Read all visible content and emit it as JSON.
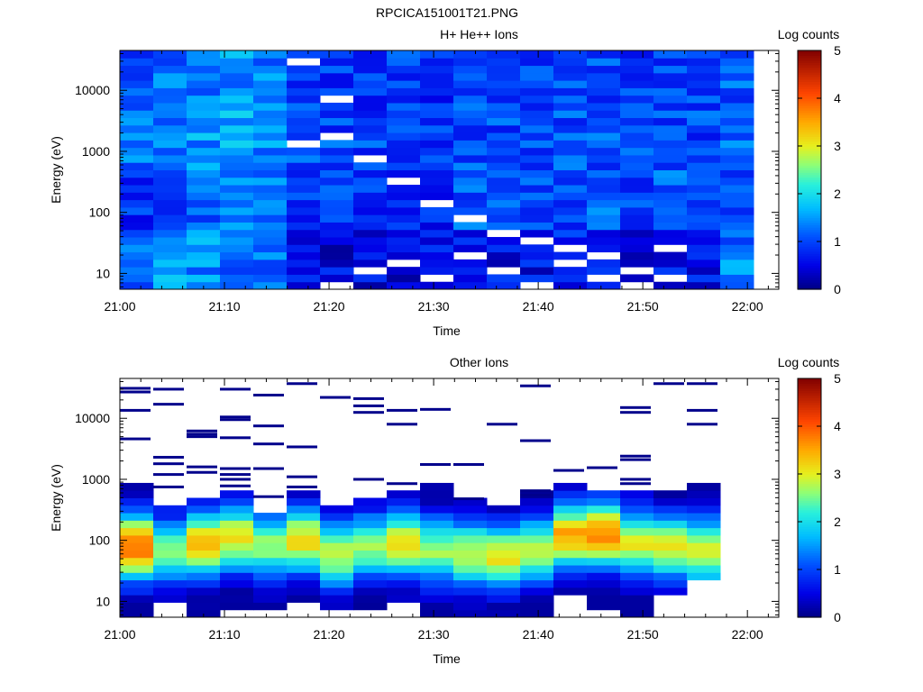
{
  "figure_title": "RPCICA151001T21.PNG",
  "chart_data": [
    {
      "type": "heatmap",
      "title": "H+ He++ Ions",
      "xlabel": "Time",
      "ylabel": "Energy (eV)",
      "y_scale": "log",
      "ylim": [
        5.5,
        45000
      ],
      "xlim": [
        "21:00",
        "22:03"
      ],
      "x_ticks": [
        "21:00",
        "21:10",
        "21:20",
        "21:30",
        "21:40",
        "21:50",
        "22:00"
      ],
      "y_ticks": [
        10,
        100,
        1000,
        10000
      ],
      "y_tick_labels": [
        "10",
        "100",
        "1000",
        "10000"
      ],
      "time_bin_minutes": 3.2,
      "energy_channels": 32,
      "energy_range_ev": [
        5.5,
        45000
      ],
      "colorbar": {
        "label": "Log counts",
        "range": [
          0,
          5
        ],
        "ticks": [
          "0",
          "1",
          "2",
          "3",
          "4",
          "5"
        ]
      },
      "column_profiles": [
        [
          1.3,
          1.5,
          1.4,
          1.1,
          1.2,
          0.6,
          0.5,
          0.5,
          0.5,
          0.6,
          0.7,
          0.6,
          0.6,
          0.8,
          0.7,
          0.6,
          0.6,
          0.6
        ],
        [
          0.9,
          1.0,
          1.2,
          1.3,
          1.2,
          0.8,
          0.9,
          0.9,
          0.9,
          0.8,
          1.1,
          1.0,
          1.1,
          1.0,
          1.2,
          1.0,
          1.1,
          1.0
        ],
        [
          1.2,
          1.4,
          1.5,
          1.6,
          1.4,
          1.0,
          1.0,
          1.0,
          1.0,
          0.9,
          1.0,
          1.0,
          1.0,
          1.1,
          1.1,
          1.0,
          1.0,
          1.0
        ],
        [
          1.1,
          1.2,
          1.4,
          1.5,
          1.3,
          0.9,
          0.9,
          0.9,
          0.9,
          0.8,
          1.0,
          0.9,
          0.9,
          1.0,
          1.0,
          0.9,
          0.9,
          0.9
        ]
      ],
      "empty_cells": [
        [
          5,
          30
        ],
        [
          6,
          25
        ],
        [
          5,
          19
        ],
        [
          6,
          20
        ],
        [
          7,
          17
        ],
        [
          8,
          14
        ],
        [
          9,
          11
        ],
        [
          10,
          9
        ],
        [
          11,
          7
        ],
        [
          12,
          6
        ],
        [
          13,
          5
        ],
        [
          14,
          4
        ],
        [
          15,
          2
        ],
        [
          16,
          1
        ],
        [
          8,
          3
        ],
        [
          9,
          1
        ],
        [
          11,
          2
        ],
        [
          12,
          0
        ],
        [
          13,
          3
        ],
        [
          14,
          1
        ],
        [
          15,
          0
        ],
        [
          16,
          5
        ],
        [
          10,
          4
        ],
        [
          7,
          2
        ],
        [
          6,
          0
        ]
      ]
    },
    {
      "type": "heatmap",
      "title": "Other Ions",
      "xlabel": "Time",
      "ylabel": "Energy (eV)",
      "y_scale": "log",
      "ylim": [
        5.5,
        45000
      ],
      "xlim": [
        "21:00",
        "22:03"
      ],
      "x_ticks": [
        "21:00",
        "21:10",
        "21:20",
        "21:30",
        "21:40",
        "21:50",
        "22:00"
      ],
      "y_ticks": [
        10,
        100,
        1000,
        10000
      ],
      "y_tick_labels": [
        "10",
        "100",
        "1000",
        "10000"
      ],
      "time_bin_minutes": 3.2,
      "energy_channels": 32,
      "energy_range_ev": [
        5.5,
        45000
      ],
      "colorbar": {
        "label": "Log counts",
        "range": [
          0,
          5
        ],
        "ticks": [
          "0",
          "1",
          "2",
          "3",
          "4",
          "5"
        ]
      },
      "peak_energy_ev": [
        80,
        70,
        90,
        110,
        80,
        100,
        60,
        80,
        90,
        70,
        60,
        55,
        70,
        120,
        130,
        90,
        80,
        70
      ],
      "peak_log_counts": [
        3.9,
        2.5,
        3.4,
        3.1,
        2.6,
        3.2,
        2.8,
        2.6,
        3.1,
        2.7,
        2.9,
        3.1,
        2.8,
        3.5,
        3.7,
        3.0,
        3.0,
        3.0
      ],
      "upper_cutoff_ev": [
        800,
        400,
        550,
        650,
        300,
        700,
        400,
        450,
        700,
        800,
        500,
        380,
        650,
        800,
        750,
        700,
        650,
        800
      ],
      "lower_cutoff_ev": [
        6,
        9,
        6,
        7,
        8,
        9,
        7,
        8,
        9,
        6,
        6,
        6,
        6,
        12,
        7,
        6,
        14,
        20
      ],
      "sparse_high_energy_lines": [
        [
          0,
          31000
        ],
        [
          0,
          27000
        ],
        [
          0,
          13500
        ],
        [
          0,
          4600
        ],
        [
          1,
          30000
        ],
        [
          1,
          17000
        ],
        [
          1,
          2300
        ],
        [
          1,
          1800
        ],
        [
          1,
          1200
        ],
        [
          1,
          750
        ],
        [
          2,
          6200
        ],
        [
          2,
          5500
        ],
        [
          2,
          5000
        ],
        [
          2,
          1600
        ],
        [
          2,
          1300
        ],
        [
          3,
          30000
        ],
        [
          3,
          10500
        ],
        [
          3,
          9500
        ],
        [
          3,
          4800
        ],
        [
          3,
          1500
        ],
        [
          3,
          1200
        ],
        [
          3,
          1000
        ],
        [
          3,
          780
        ],
        [
          4,
          24000
        ],
        [
          4,
          7500
        ],
        [
          4,
          3800
        ],
        [
          4,
          1500
        ],
        [
          4,
          520
        ],
        [
          5,
          37000
        ],
        [
          5,
          3400
        ],
        [
          5,
          1100
        ],
        [
          5,
          750
        ],
        [
          6,
          22000
        ],
        [
          7,
          21000
        ],
        [
          7,
          16000
        ],
        [
          7,
          12500
        ],
        [
          7,
          1000
        ],
        [
          8,
          13500
        ],
        [
          8,
          8000
        ],
        [
          8,
          850
        ],
        [
          9,
          14000
        ],
        [
          9,
          1750
        ],
        [
          10,
          1750
        ],
        [
          10,
          480
        ],
        [
          11,
          8000
        ],
        [
          12,
          34000
        ],
        [
          12,
          4300
        ],
        [
          12,
          650
        ],
        [
          12,
          550
        ],
        [
          13,
          1400
        ],
        [
          14,
          1550
        ],
        [
          15,
          15000
        ],
        [
          15,
          12500
        ],
        [
          15,
          2400
        ],
        [
          15,
          2100
        ],
        [
          15,
          1000
        ],
        [
          15,
          850
        ],
        [
          16,
          37000
        ],
        [
          17,
          37000
        ],
        [
          17,
          13500
        ],
        [
          17,
          8000
        ]
      ]
    }
  ]
}
